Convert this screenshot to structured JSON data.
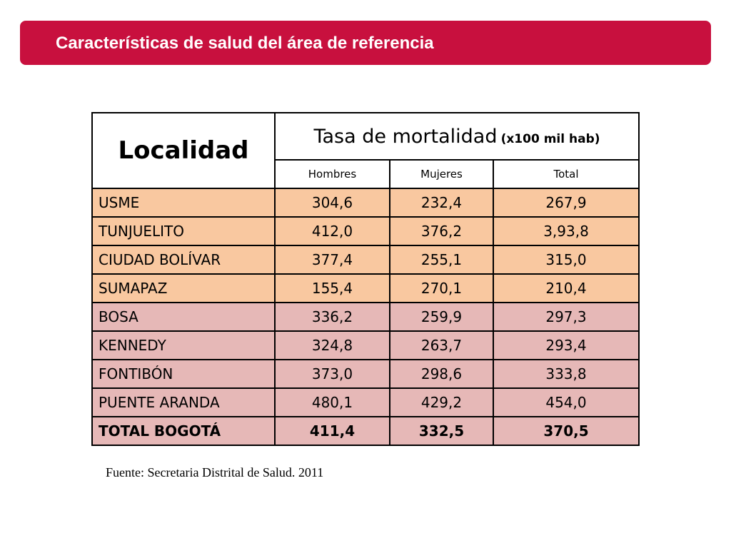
{
  "header": {
    "title": "Características de salud del área de referencia"
  },
  "table": {
    "col_localidad": "Localidad",
    "col_tasa": "Tasa de mortalidad",
    "col_tasa_unit": "(x100 mil hab)",
    "sub_hombres": "Hombres",
    "sub_mujeres": "Mujeres",
    "sub_total": "Total",
    "rows": [
      {
        "name": "USME",
        "hombres": "304,6",
        "mujeres": "232,4",
        "total": "267,9"
      },
      {
        "name": "TUNJUELITO",
        "hombres": "412,0",
        "mujeres": "376,2",
        "total": "3,93,8"
      },
      {
        "name": "CIUDAD BOLÍVAR",
        "hombres": "377,4",
        "mujeres": "255,1",
        "total": "315,0"
      },
      {
        "name": "SUMAPAZ",
        "hombres": "155,4",
        "mujeres": "270,1",
        "total": "210,4"
      },
      {
        "name": "BOSA",
        "hombres": "336,2",
        "mujeres": "259,9",
        "total": "297,3"
      },
      {
        "name": "KENNEDY",
        "hombres": "324,8",
        "mujeres": "263,7",
        "total": "293,4"
      },
      {
        "name": "FONTIBÓN",
        "hombres": "373,0",
        "mujeres": "298,6",
        "total": "333,8"
      },
      {
        "name": "PUENTE ARANDA",
        "hombres": "480,1",
        "mujeres": "429,2",
        "total": "454,0"
      },
      {
        "name": "TOTAL BOGOTÁ",
        "hombres": "411,4",
        "mujeres": "332,5",
        "total": "370,5"
      }
    ]
  },
  "footer": {
    "source": "Fuente: Secretaria Distrital de Salud. 2011"
  },
  "colors": {
    "banner": "#c8103e",
    "row_orange": "#f9c8a0",
    "row_pink": "#e6b8b7"
  }
}
